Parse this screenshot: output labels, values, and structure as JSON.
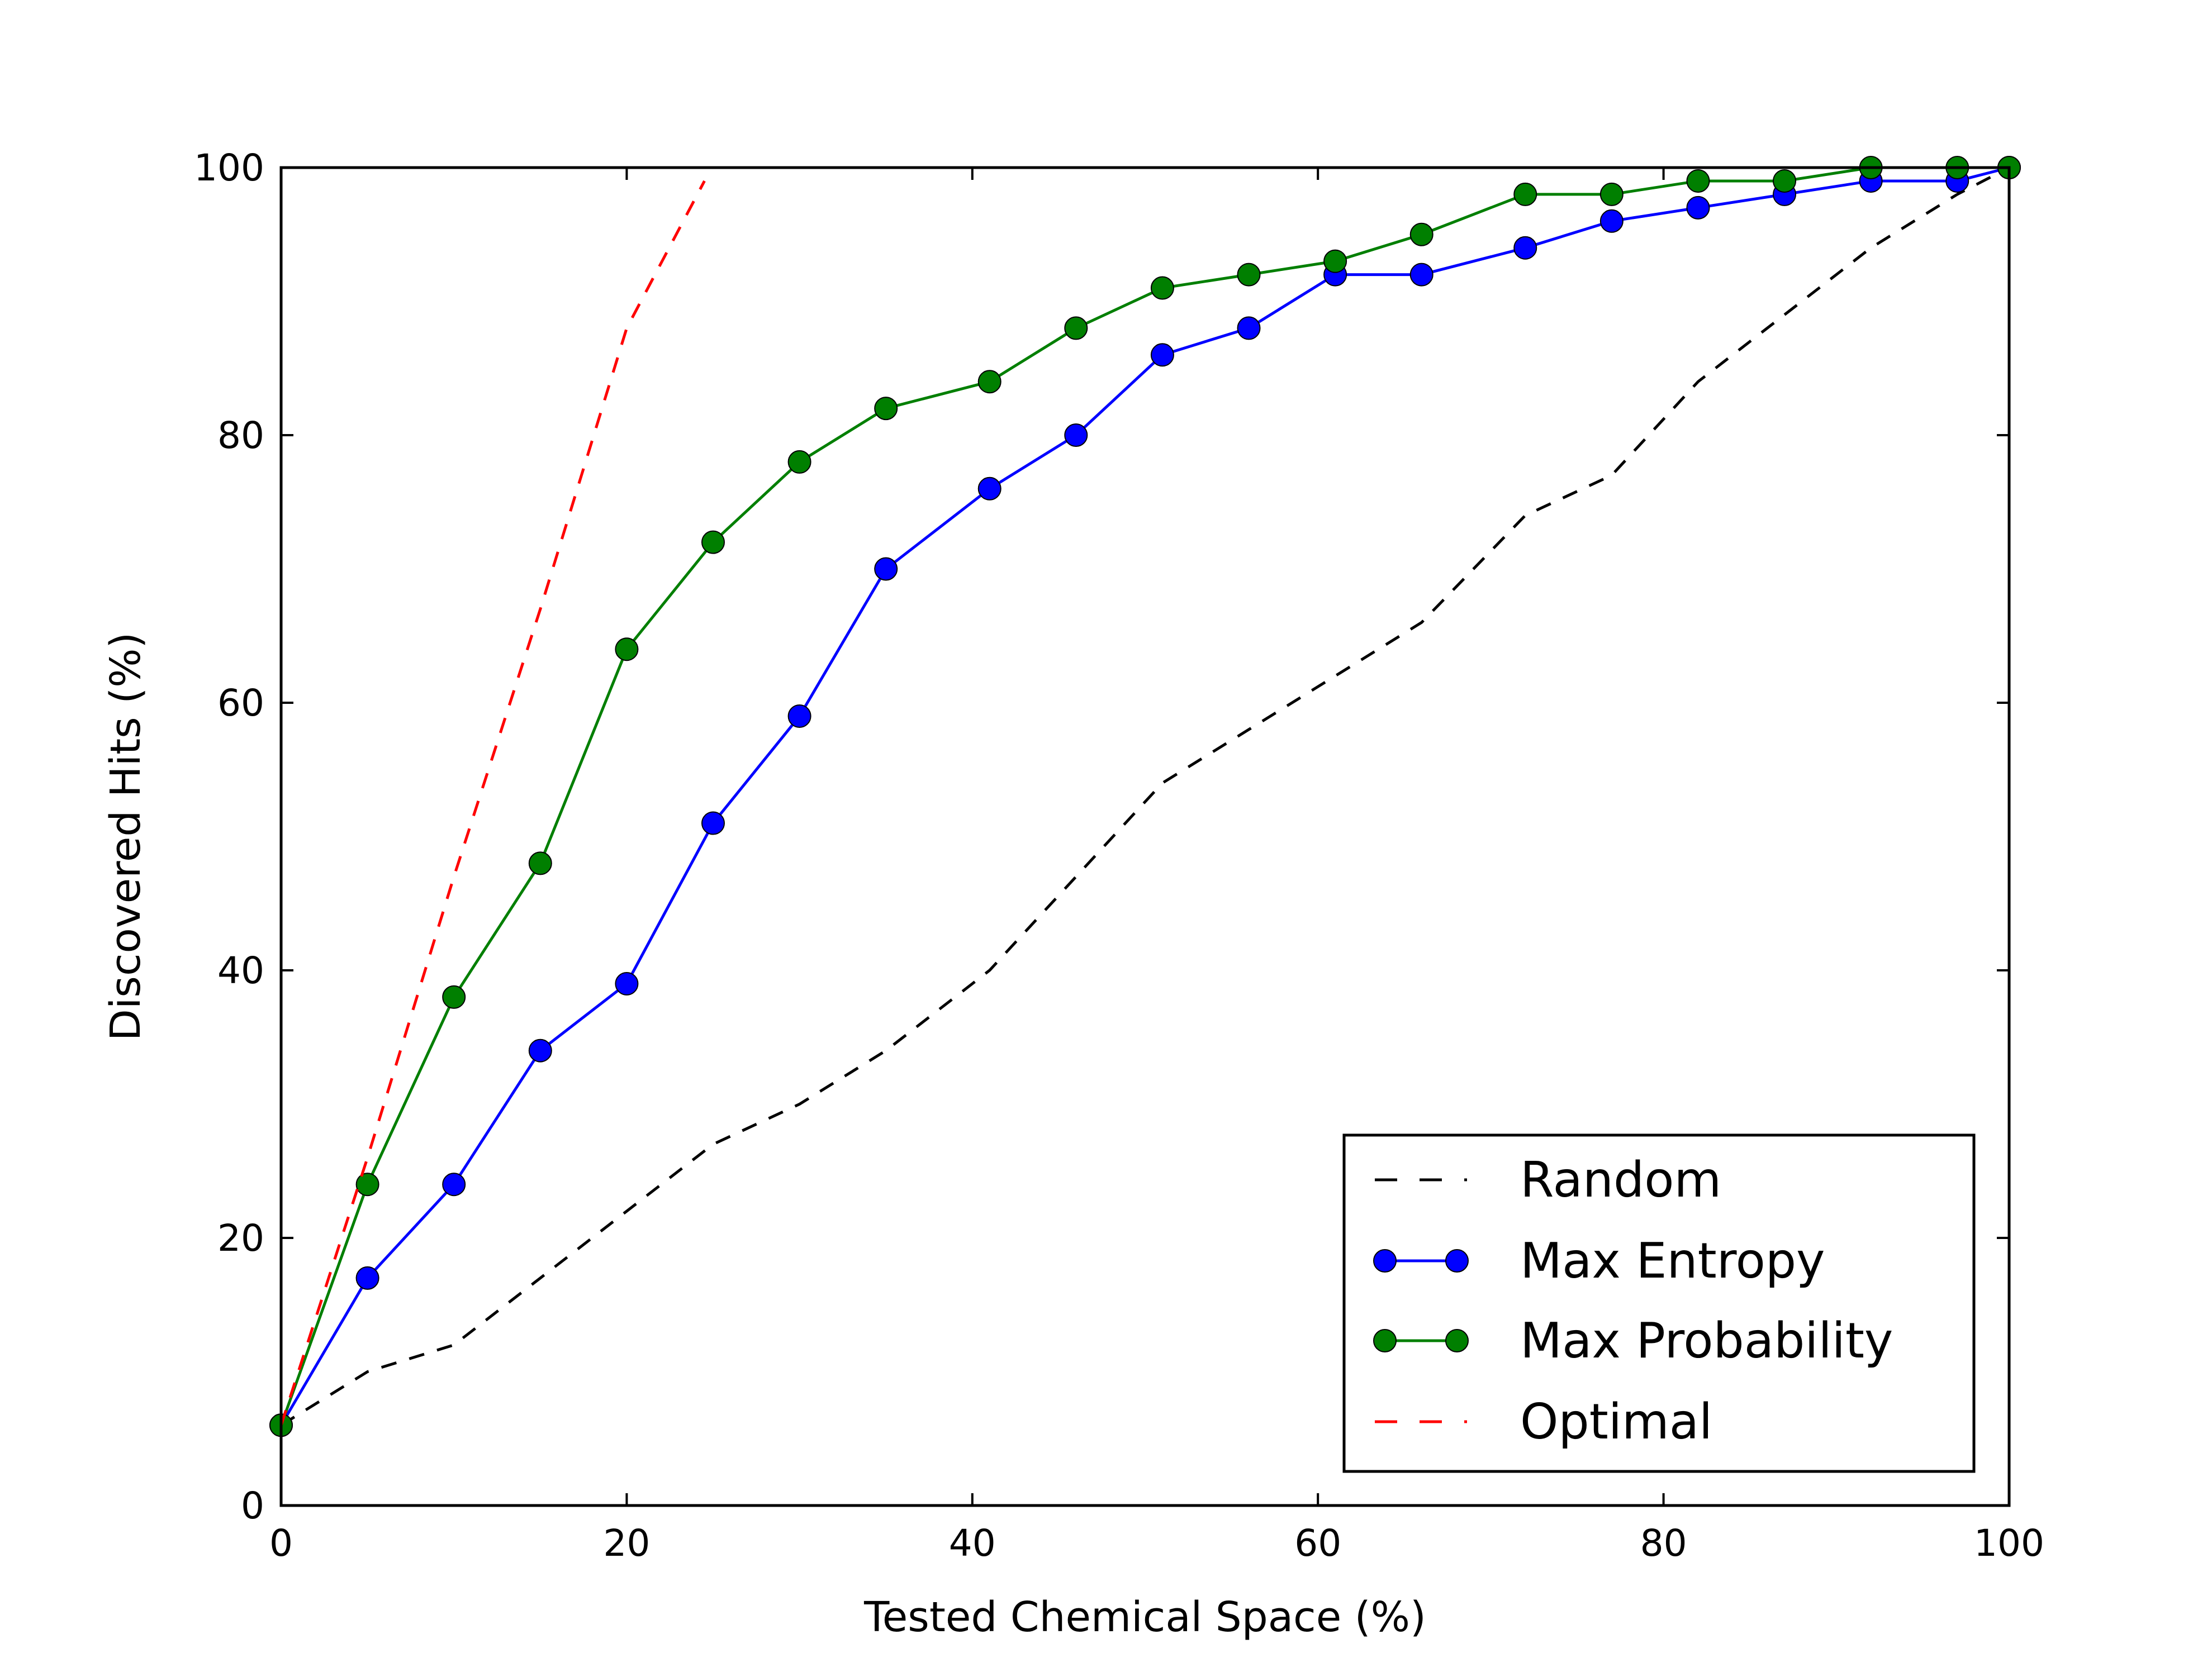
{
  "chart_data": {
    "type": "line",
    "title": "",
    "xlabel": "Tested Chemical Space (%)",
    "ylabel": "Discovered Hits (%)",
    "xlim": [
      0,
      100
    ],
    "ylim": [
      0,
      100
    ],
    "xticks": [
      0,
      20,
      40,
      60,
      80,
      100
    ],
    "yticks": [
      0,
      20,
      40,
      60,
      80,
      100
    ],
    "xtick_labels": [
      "0",
      "20",
      "40",
      "60",
      "80",
      "100"
    ],
    "ytick_labels": [
      "0",
      "20",
      "40",
      "60",
      "80",
      "100"
    ],
    "grid": false,
    "legend_position": "lower-right",
    "series": [
      {
        "name": "Random",
        "style": "dashed",
        "markers": false,
        "color": "#000000",
        "x": [
          0,
          5,
          10,
          15,
          20,
          25,
          30,
          35,
          41,
          46,
          51,
          56,
          61,
          66,
          72,
          77,
          82,
          87,
          92,
          97,
          100
        ],
        "y": [
          6,
          10,
          12,
          17,
          22,
          27,
          30,
          34,
          40,
          47,
          54,
          58,
          62,
          66,
          74,
          77,
          84,
          89,
          94,
          98,
          100
        ]
      },
      {
        "name": "Max Entropy",
        "style": "solid",
        "markers": true,
        "color": "#0000ff",
        "x": [
          0,
          5,
          10,
          15,
          20,
          25,
          30,
          35,
          41,
          46,
          51,
          56,
          61,
          66,
          72,
          77,
          82,
          87,
          92,
          97,
          100
        ],
        "y": [
          6,
          17,
          24,
          34,
          39,
          51,
          59,
          70,
          76,
          80,
          86,
          88,
          92,
          92,
          94,
          96,
          97,
          98,
          99,
          99,
          100
        ]
      },
      {
        "name": "Max Probability",
        "style": "solid",
        "markers": true,
        "color": "#007f00",
        "x": [
          0,
          5,
          10,
          15,
          20,
          25,
          30,
          35,
          41,
          46,
          51,
          56,
          61,
          66,
          72,
          77,
          82,
          87,
          92,
          97,
          100
        ],
        "y": [
          6,
          24,
          38,
          48,
          64,
          72,
          78,
          82,
          84,
          88,
          91,
          92,
          93,
          95,
          98,
          98,
          99,
          99,
          100,
          100,
          100
        ]
      },
      {
        "name": "Optimal",
        "style": "dashed",
        "markers": false,
        "color": "#ff0000",
        "x": [
          0,
          5,
          10,
          15,
          20,
          24.5
        ],
        "y": [
          6,
          26,
          47,
          67,
          88,
          99
        ]
      }
    ]
  }
}
